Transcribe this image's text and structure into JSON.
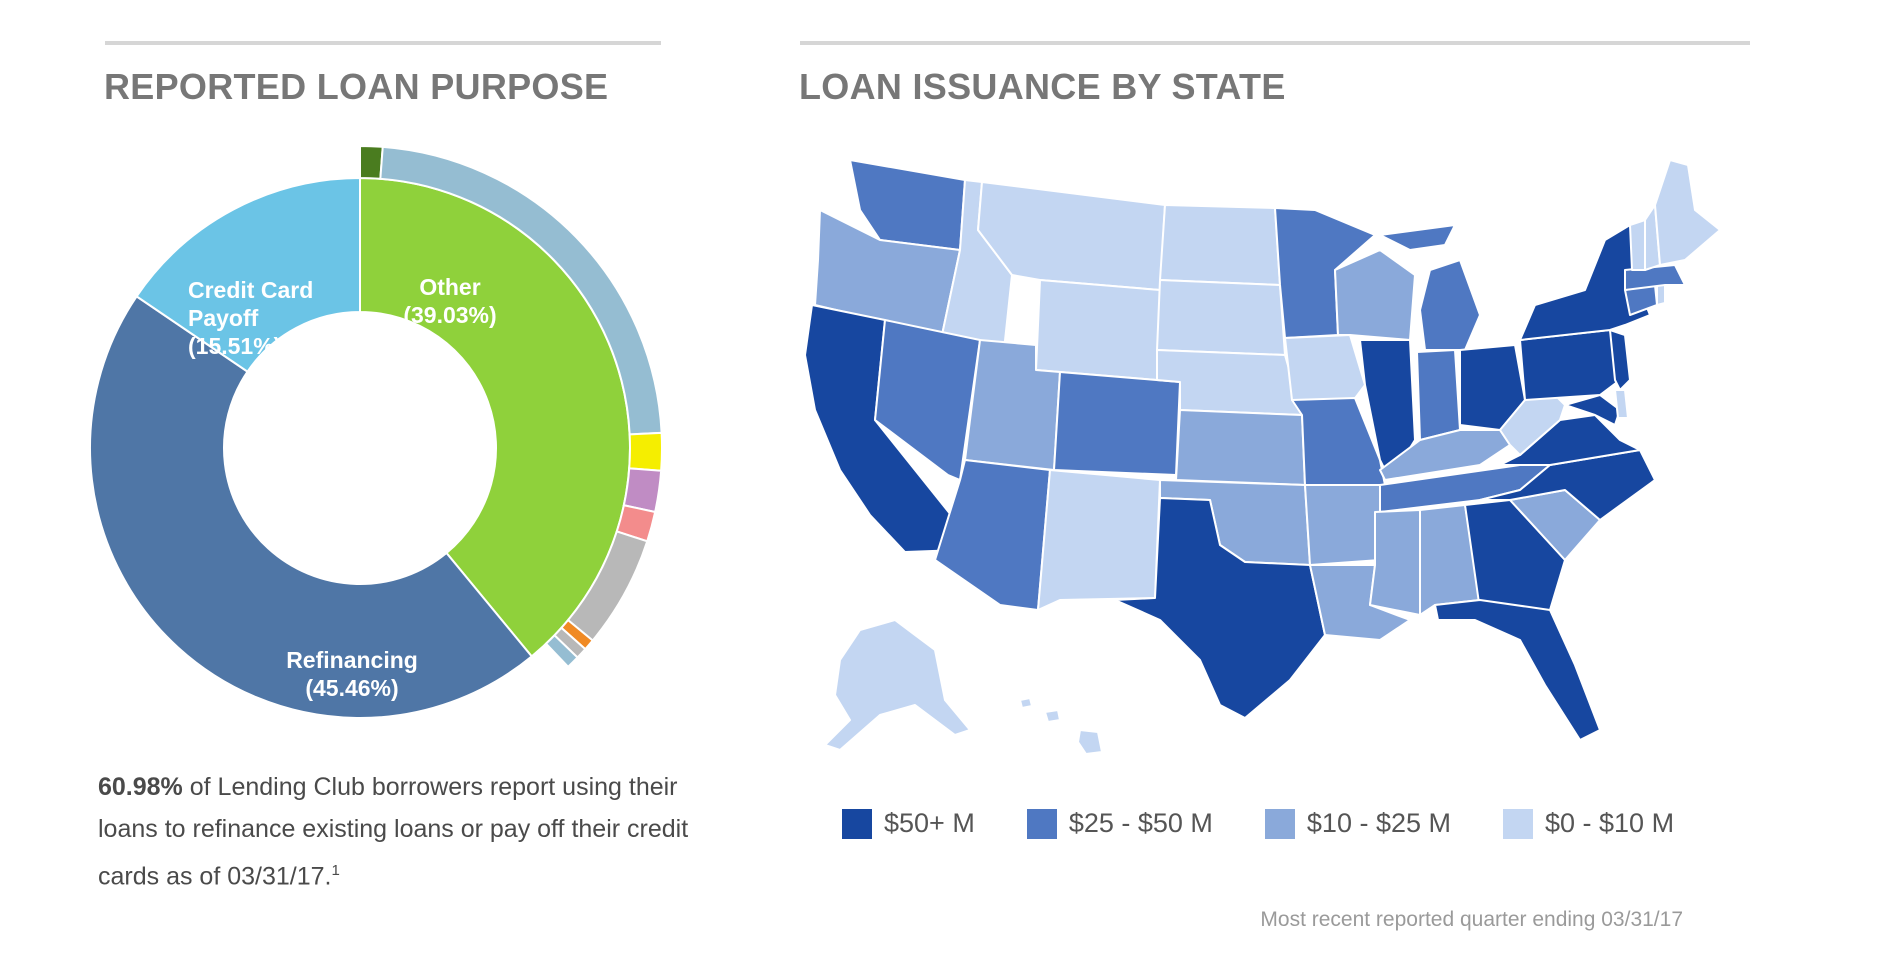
{
  "left_panel": {
    "title": "REPORTED LOAN PURPOSE",
    "caption_bold": "60.98%",
    "caption_rest": " of Lending Club borrowers report using their loans to refinance existing loans or pay off their credit cards as of 03/31/17.",
    "caption_sup": "1"
  },
  "right_panel": {
    "title": "LOAN ISSUANCE BY STATE",
    "footnote": "Most recent reported quarter ending 03/31/17"
  },
  "chart_data": [
    {
      "type": "pie",
      "title": "REPORTED LOAN PURPOSE",
      "inner_ring": [
        {
          "label": "Other",
          "value_label": "(39.03%)",
          "value": 39.03,
          "color": "#8fd13b"
        },
        {
          "label": "Refinancing",
          "value_label": "(45.46%)",
          "value": 45.46,
          "color": "#4f76a6"
        },
        {
          "label": "Credit Card Payoff",
          "value_label": "(15.51%)",
          "value": 15.51,
          "color": "#6bc4e6"
        }
      ],
      "inner_label_lines": [
        [
          "Other",
          "(39.03%)"
        ],
        [
          "Refinancing",
          "(45.46%)"
        ],
        [
          "Credit Card",
          "Payoff",
          "(15.51%)"
        ]
      ],
      "outer_ring": [
        {
          "value": 1.2,
          "color": "#4a7c1f"
        },
        {
          "value": 23.0,
          "color": "#95bdd2"
        },
        {
          "value": 2.0,
          "color": "#f5ee00"
        },
        {
          "value": 2.2,
          "color": "#c08cc4"
        },
        {
          "value": 1.6,
          "color": "#f38c8c"
        },
        {
          "value": 6.0,
          "color": "#b8b8b8"
        },
        {
          "value": 0.6,
          "color": "#f08a24"
        },
        {
          "value": 0.6,
          "color": "#b8b8b8"
        },
        {
          "value": 0.7,
          "color": "#95bdd2"
        }
      ]
    },
    {
      "type": "choropleth",
      "title": "LOAN ISSUANCE BY STATE",
      "legend": [
        {
          "label": "$50+ M",
          "color": "#1747a0"
        },
        {
          "label": "$25 - $50 M",
          "color": "#4f78c2"
        },
        {
          "label": "$10 - $25 M",
          "color": "#8aa9da"
        },
        {
          "label": "$0 - $10 M",
          "color": "#c3d6f2"
        }
      ]
    }
  ]
}
